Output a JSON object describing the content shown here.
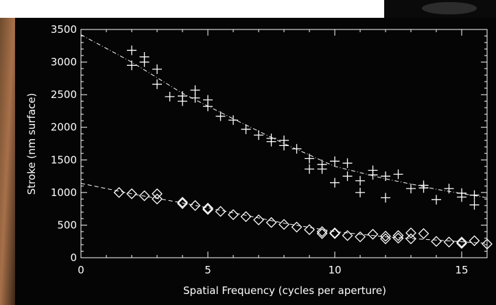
{
  "chart_data": {
    "type": "scatter",
    "title": "",
    "xlabel": "Spatial Frequency (cycles per aperture)",
    "ylabel": "Stroke (nm surface)",
    "xlim": [
      0,
      16
    ],
    "ylim": [
      0,
      3500
    ],
    "x_ticks": [
      "0",
      "5",
      "10",
      "15"
    ],
    "y_ticks": [
      "0",
      "500",
      "1000",
      "1500",
      "2000",
      "2500",
      "3000",
      "3500"
    ],
    "grid": false,
    "legend": "none",
    "series": [
      {
        "marker": "plus",
        "points": [
          [
            2,
            3180
          ],
          [
            2,
            2950
          ],
          [
            2.5,
            3080
          ],
          [
            2.5,
            3000
          ],
          [
            3,
            2890
          ],
          [
            3,
            2660
          ],
          [
            3.5,
            2470
          ],
          [
            4,
            2480
          ],
          [
            4,
            2400
          ],
          [
            4.5,
            2570
          ],
          [
            4.5,
            2450
          ],
          [
            5,
            2420
          ],
          [
            5,
            2320
          ],
          [
            5.5,
            2170
          ],
          [
            6,
            2110
          ],
          [
            6.5,
            1970
          ],
          [
            7,
            1880
          ],
          [
            7.5,
            1830
          ],
          [
            7.5,
            1780
          ],
          [
            8,
            1800
          ],
          [
            8,
            1720
          ],
          [
            8.5,
            1670
          ],
          [
            9,
            1520
          ],
          [
            9,
            1360
          ],
          [
            9.5,
            1430
          ],
          [
            9.5,
            1360
          ],
          [
            10,
            1480
          ],
          [
            10,
            1150
          ],
          [
            10.5,
            1450
          ],
          [
            10.5,
            1250
          ],
          [
            11,
            1180
          ],
          [
            11,
            1000
          ],
          [
            11.5,
            1340
          ],
          [
            11.5,
            1270
          ],
          [
            12,
            1250
          ],
          [
            12,
            920
          ],
          [
            12.5,
            1280
          ],
          [
            13,
            1060
          ],
          [
            13.5,
            1110
          ],
          [
            13.5,
            1070
          ],
          [
            14,
            890
          ],
          [
            14.5,
            1060
          ],
          [
            15,
            990
          ],
          [
            15,
            930
          ],
          [
            15.5,
            960
          ],
          [
            15.5,
            810
          ]
        ]
      },
      {
        "marker": "diamond",
        "points": [
          [
            1.5,
            1000
          ],
          [
            2,
            980
          ],
          [
            2.5,
            950
          ],
          [
            3,
            980
          ],
          [
            3,
            900
          ],
          [
            4,
            850
          ],
          [
            4,
            830
          ],
          [
            4.5,
            800
          ],
          [
            5,
            760
          ],
          [
            5,
            740
          ],
          [
            5.5,
            710
          ],
          [
            6,
            660
          ],
          [
            6.5,
            630
          ],
          [
            7,
            580
          ],
          [
            7.5,
            540
          ],
          [
            8,
            510
          ],
          [
            8.5,
            470
          ],
          [
            9,
            430
          ],
          [
            9.5,
            400
          ],
          [
            9.5,
            370
          ],
          [
            10,
            380
          ],
          [
            10,
            370
          ],
          [
            10.5,
            340
          ],
          [
            11,
            320
          ],
          [
            11.5,
            360
          ],
          [
            12,
            330
          ],
          [
            12,
            290
          ],
          [
            12.5,
            340
          ],
          [
            12.5,
            300
          ],
          [
            13,
            380
          ],
          [
            13,
            290
          ],
          [
            13.5,
            370
          ],
          [
            14,
            250
          ],
          [
            14.5,
            240
          ],
          [
            15,
            240
          ],
          [
            15,
            220
          ],
          [
            15.5,
            260
          ],
          [
            16,
            210
          ]
        ]
      }
    ],
    "fits": [
      {
        "style": "dash-dot",
        "x": [
          0,
          2,
          4,
          6,
          8,
          10,
          12,
          14,
          16
        ],
        "y": [
          3420,
          3000,
          2520,
          2130,
          1750,
          1400,
          1210,
          1050,
          920
        ]
      },
      {
        "style": "dashed",
        "x": [
          0,
          2,
          4,
          6,
          8,
          10,
          12,
          14,
          16
        ],
        "y": [
          1140,
          980,
          840,
          690,
          530,
          400,
          320,
          270,
          220
        ]
      }
    ]
  }
}
